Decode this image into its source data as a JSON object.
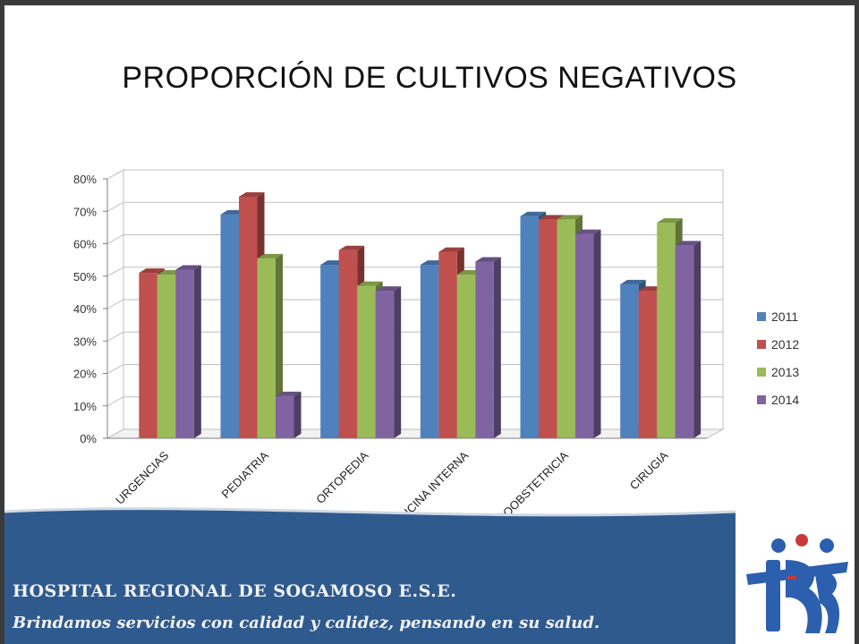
{
  "slide": {
    "title": "PROPORCIÓN DE CULTIVOS NEGATIVOS",
    "banner_title": "HOSPITAL REGIONAL DE SOGAMOSO E.S.E.",
    "banner_slogan": "Brindamos servicios con calidad y calidez, pensando en su salud.",
    "logo_icon": "hospital-logo-icon",
    "colors": {
      "banner": "#2f5a8e",
      "logo": "#2c5fae",
      "logo_accent": "#c83a3a"
    }
  },
  "chart_data": {
    "type": "bar",
    "title": "PROPORCIÓN DE CULTIVOS NEGATIVOS",
    "categories": [
      "URGENCIAS",
      "PEDIATRIA",
      "ORTOPEDIA",
      "MEDICINA INTERNA",
      "GINECOOBSTETRICIA",
      "CIRUGIA"
    ],
    "series": [
      {
        "name": "2011",
        "color": "#4f81bd",
        "values": [
          null,
          0.69,
          0.535,
          0.535,
          0.685,
          0.475
        ]
      },
      {
        "name": "2012",
        "color": "#c0504d",
        "values": [
          0.51,
          0.745,
          0.58,
          0.575,
          0.675,
          0.455
        ]
      },
      {
        "name": "2013",
        "color": "#9bbb59",
        "values": [
          0.505,
          0.555,
          0.47,
          0.505,
          0.675,
          0.665
        ]
      },
      {
        "name": "2014",
        "color": "#8064a2",
        "values": [
          0.52,
          0.13,
          0.455,
          0.545,
          0.63,
          0.595
        ]
      }
    ],
    "yticks": [
      "0%",
      "10%",
      "20%",
      "30%",
      "40%",
      "50%",
      "60%",
      "70%",
      "80%"
    ],
    "ylim": [
      0,
      0.8
    ],
    "grid": true,
    "legend_position": "right"
  }
}
